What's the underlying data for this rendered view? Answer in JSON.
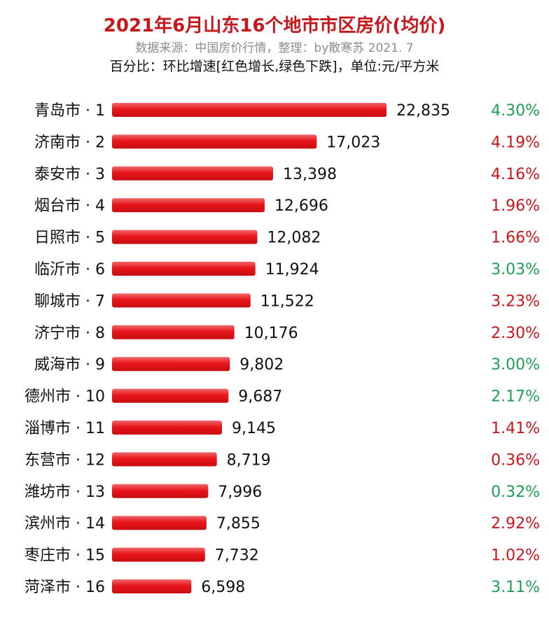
{
  "header": {
    "title": "2021年6月山东16个地市市区房价(均价)",
    "source": "数据来源：中国房价行情，整理：by散寒苏  2021. 7",
    "note": "百分比：环比增速[红色增长,绿色下跌]，单位:元/平方米"
  },
  "colors": {
    "title": "#c8161d",
    "bar": "#e8161b",
    "increase": "#c8161d",
    "decrease": "#1e9e54"
  },
  "chart_data": {
    "type": "bar",
    "orientation": "horizontal",
    "categories": [
      "青岛市 · 1",
      "济南市 · 2",
      "泰安市 · 3",
      "烟台市 · 4",
      "日照市 · 5",
      "临沂市 · 6",
      "聊城市 · 7",
      "济宁市 · 8",
      "威海市 · 9",
      "德州市 · 10",
      "淄博市 · 11",
      "东营市 · 12",
      "潍坊市 · 13",
      "滨州市 · 14",
      "枣庄市 · 15",
      "菏泽市 · 16"
    ],
    "values": [
      22835,
      17023,
      13398,
      12696,
      12082,
      11924,
      11522,
      10176,
      9802,
      9687,
      9145,
      8719,
      7996,
      7855,
      7732,
      6598
    ],
    "value_labels": [
      "22,835",
      "17,023",
      "13,398",
      "12,696",
      "12,082",
      "11,924",
      "11,522",
      "10,176",
      "9,802",
      "9,687",
      "9,145",
      "8,719",
      "7,996",
      "7,855",
      "7,732",
      "6,598"
    ],
    "growth_labels": [
      "4.30%",
      "4.19%",
      "4.16%",
      "1.96%",
      "1.66%",
      "3.03%",
      "3.23%",
      "2.30%",
      "3.00%",
      "2.17%",
      "1.41%",
      "0.36%",
      "0.32%",
      "2.92%",
      "1.02%",
      "3.11%"
    ],
    "growth_direction": [
      "down",
      "up",
      "up",
      "up",
      "up",
      "down",
      "up",
      "up",
      "down",
      "down",
      "up",
      "up",
      "down",
      "up",
      "up",
      "down"
    ],
    "xlim": [
      0,
      22835
    ],
    "grid": false,
    "legend": "none"
  }
}
